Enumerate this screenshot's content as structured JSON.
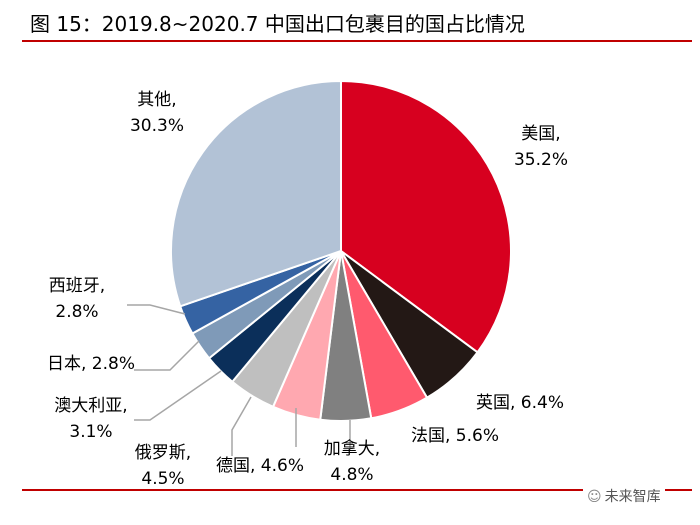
{
  "title": "图 15：2019.8~2020.7 中国出口包裹目的国占比情况",
  "watermark": {
    "icon": "wechat-icon",
    "text": "未来智库"
  },
  "colors": {
    "rule": "#c00000"
  },
  "chart_data": {
    "type": "pie",
    "title": "图 15：2019.8~2020.7 中国出口包裹目的国占比情况",
    "slices": [
      {
        "name": "美国",
        "value": 35.2,
        "line1": "美国,",
        "line2": "35.2%",
        "color": "#d7001f"
      },
      {
        "name": "英国",
        "value": 6.4,
        "line1": "英国, 6.4%",
        "line2": "",
        "color": "#231815"
      },
      {
        "name": "法国",
        "value": 5.6,
        "line1": "法国, 5.6%",
        "line2": "",
        "color": "#ff5a6e"
      },
      {
        "name": "加拿大",
        "value": 4.8,
        "line1": "加拿大,",
        "line2": "4.8%",
        "color": "#808080"
      },
      {
        "name": "德国",
        "value": 4.6,
        "line1": "德国, 4.6%",
        "line2": "",
        "color": "#ffa8b0"
      },
      {
        "name": "俄罗斯",
        "value": 4.5,
        "line1": "俄罗斯,",
        "line2": "4.5%",
        "color": "#bfbfbf"
      },
      {
        "name": "澳大利亚",
        "value": 3.1,
        "line1": "澳大利亚,",
        "line2": "3.1%",
        "color": "#0b2f5a"
      },
      {
        "name": "日本",
        "value": 2.8,
        "line1": "日本, 2.8%",
        "line2": "",
        "color": "#7f9ab8"
      },
      {
        "name": "西班牙",
        "value": 2.8,
        "line1": "西班牙,",
        "line2": "2.8%",
        "color": "#3563a3"
      },
      {
        "name": "其他",
        "value": 30.3,
        "line1": "其他,",
        "line2": "30.3%",
        "color": "#b2c2d6"
      }
    ]
  }
}
